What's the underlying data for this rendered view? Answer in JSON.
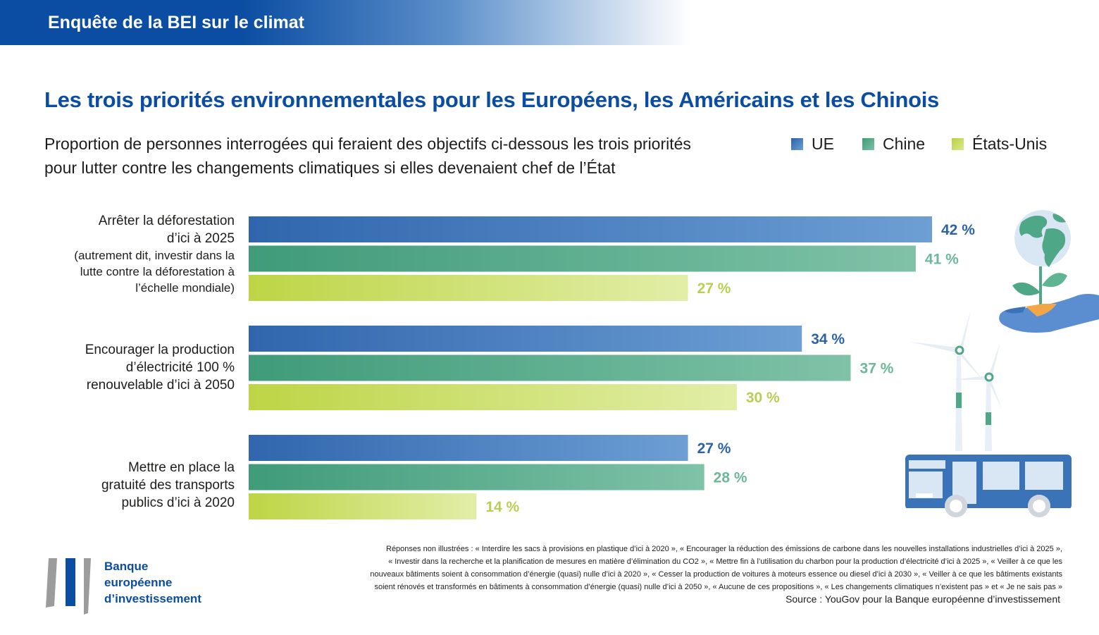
{
  "header": {
    "title": "Enquête de la BEI sur le climat"
  },
  "title": "Les trois priorités environnementales pour les Européens, les Américains et les Chinois",
  "subtitle_lines": [
    "Proportion de personnes interrogées qui feraient des objectifs ci-dessous les trois priorités",
    "pour lutter contre les changements climatiques si elles devenaient chef de l’État"
  ],
  "legend": [
    {
      "name": "UE",
      "color": "#3b73b9"
    },
    {
      "name": "Chine",
      "color": "#4ea786"
    },
    {
      "name": "États-Unis",
      "color": "#c5dc58"
    }
  ],
  "chart_data": {
    "type": "bar",
    "orientation": "horizontal",
    "categories": [
      {
        "lines": [
          "Arrêter la déforestation",
          "d’ici à 2025"
        ],
        "sub_lines": [
          "(autrement dit, investir dans la",
          "lutte contre la déforestation à",
          "l’échelle mondiale)"
        ]
      },
      {
        "lines": [
          "Encourager la production",
          "d’électricité 100 %",
          "renouvelable d’ici à 2050"
        ],
        "sub_lines": []
      },
      {
        "lines": [
          "Mettre en place la",
          "gratuité des transports",
          "publics d’ici à 2020"
        ],
        "sub_lines": []
      }
    ],
    "series": [
      {
        "name": "UE",
        "values": [
          42,
          34,
          27
        ],
        "labels": [
          "42 %",
          "34 %",
          "27 %"
        ],
        "color": "#3b73b9",
        "label_color": "#2c63a6"
      },
      {
        "name": "Chine",
        "values": [
          41,
          37,
          28
        ],
        "labels": [
          "41 %",
          "37 %",
          "28 %"
        ],
        "color": "#4ea786",
        "label_color": "#6bb89a"
      },
      {
        "name": "États-Unis",
        "values": [
          27,
          30,
          14
        ],
        "labels": [
          "27 %",
          "30 %",
          "14 %"
        ],
        "color": "#c5dc58",
        "label_color": "#b8cf52"
      }
    ],
    "xlim": [
      0,
      42
    ]
  },
  "footnote_lines": [
    "Réponses non illustrées : « Interdire les sacs à provisions en plastique d’ici à 2020 », « Encourager la réduction des émissions de carbone dans les nouvelles installations industrielles d’ici à 2025 »,",
    "« Investir dans la recherche et la planification de mesures en matière d’élimination du CO2 », « Mettre fin à l’utilisation du charbon pour la production d’électricité d’ici à 2025 », « Veiller à ce que les",
    "nouveaux bâtiments soient à consommation d’énergie (quasi) nulle d’ici à 2020 », « Cesser la production de voitures à moteurs essence ou diesel d’ici à 2030 », « Veiller à ce que les bâtiments existants",
    "soient rénovés et transformés en bâtiments à consommation d’énergie (quasi) nulle d’ici à 2050 », « Aucune de ces propositions », « Les changements climatiques n’existent pas » et « Je ne sais pas »"
  ],
  "source": "Source : YouGov pour la Banque européenne d’investissement",
  "logo": {
    "lines": [
      "Banque",
      "européenne",
      "d’investissement"
    ]
  }
}
